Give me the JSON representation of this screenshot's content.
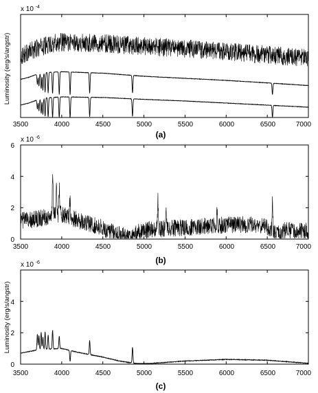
{
  "chart_data": [
    {
      "type": "line",
      "panel_label": "(a)",
      "ylabel": "Luminosity (erg/s/angstr)",
      "y_exponent": "x 10",
      "y_exponent_power": "-4",
      "xlim": [
        3500,
        7000
      ],
      "x_ticks": [
        3500,
        4000,
        4500,
        5000,
        5500,
        6000,
        6500,
        7000
      ],
      "y_ticks": [],
      "grid": false,
      "series": [
        {
          "noise": 0.9,
          "points": [
            [
              3500,
              3.0
            ],
            [
              3700,
              3.35
            ],
            [
              3900,
              3.6
            ],
            [
              4000,
              3.65
            ],
            [
              4500,
              3.6
            ],
            [
              5000,
              3.45
            ],
            [
              5500,
              3.35
            ],
            [
              6000,
              3.2
            ],
            [
              6500,
              3.05
            ],
            [
              7000,
              2.9
            ]
          ],
          "lines": []
        },
        {
          "noise": 0.02,
          "points": [
            [
              3500,
              1.85
            ],
            [
              3600,
              1.95
            ],
            [
              3700,
              2.1
            ],
            [
              3800,
              2.18
            ],
            [
              4000,
              2.22
            ],
            [
              4500,
              2.15
            ],
            [
              5000,
              2.0
            ],
            [
              5500,
              1.9
            ],
            [
              6000,
              1.8
            ],
            [
              6500,
              1.68
            ],
            [
              7000,
              1.55
            ]
          ],
          "lines": [
            [
              3704,
              -0.5
            ],
            [
              3723,
              -0.6
            ],
            [
              3750,
              -0.75
            ],
            [
              3771,
              -0.85
            ],
            [
              3798,
              -0.95
            ],
            [
              3835,
              -1.0
            ],
            [
              3889,
              -1.05
            ],
            [
              3970,
              -1.1
            ],
            [
              4102,
              -1.1
            ],
            [
              4340,
              -1.0
            ],
            [
              4861,
              -0.85
            ],
            [
              6563,
              -0.55
            ]
          ]
        },
        {
          "noise": 0.02,
          "points": [
            [
              3500,
              0.6
            ],
            [
              3600,
              0.7
            ],
            [
              3700,
              0.85
            ],
            [
              3800,
              0.95
            ],
            [
              4000,
              1.0
            ],
            [
              4500,
              0.97
            ],
            [
              5000,
              0.88
            ],
            [
              5500,
              0.8
            ],
            [
              6000,
              0.7
            ],
            [
              6500,
              0.6
            ],
            [
              7000,
              0.5
            ]
          ],
          "lines": [
            [
              3704,
              -0.45
            ],
            [
              3723,
              -0.55
            ],
            [
              3750,
              -0.7
            ],
            [
              3771,
              -0.8
            ],
            [
              3798,
              -0.9
            ],
            [
              3835,
              -0.95
            ],
            [
              3889,
              -1.0
            ],
            [
              3970,
              -1.05
            ],
            [
              4102,
              -1.05
            ],
            [
              4340,
              -0.95
            ],
            [
              4861,
              -0.85
            ],
            [
              6563,
              -0.6
            ]
          ]
        }
      ]
    },
    {
      "type": "line",
      "panel_label": "(b)",
      "ylabel": "Luminosity (erg/s/angstr)",
      "y_exponent": "x 10",
      "y_exponent_power": "-6",
      "xlim": [
        3500,
        7000
      ],
      "ylim": [
        0,
        6
      ],
      "x_ticks": [
        3500,
        4000,
        4500,
        5000,
        5500,
        6000,
        6500,
        7000
      ],
      "y_ticks": [
        0,
        2,
        4,
        6
      ],
      "grid": false,
      "series": [
        {
          "noise": 1.1,
          "points": [
            [
              3500,
              1.2
            ],
            [
              3700,
              1.3
            ],
            [
              3900,
              1.5
            ],
            [
              4000,
              1.6
            ],
            [
              4200,
              1.2
            ],
            [
              4500,
              0.7
            ],
            [
              4700,
              0.3
            ],
            [
              4850,
              0.1
            ],
            [
              4950,
              0.5
            ],
            [
              5100,
              0.6
            ],
            [
              5500,
              0.75
            ],
            [
              6000,
              0.9
            ],
            [
              6300,
              0.95
            ],
            [
              6500,
              0.75
            ],
            [
              6600,
              0.3
            ],
            [
              6700,
              0.55
            ],
            [
              7000,
              0.5
            ]
          ],
          "lines": [
            [
              3890,
              2.5
            ],
            [
              3935,
              2.4
            ],
            [
              3970,
              1.8
            ],
            [
              4100,
              1.2
            ],
            [
              5170,
              1.8
            ],
            [
              5270,
              1.4
            ],
            [
              5890,
              0.8
            ],
            [
              6563,
              2.0
            ]
          ]
        }
      ]
    },
    {
      "type": "line",
      "panel_label": "(c)",
      "ylabel": "Luminosity (erg/s/angstr)",
      "y_exponent": "x 10",
      "y_exponent_power": "-6",
      "xlim": [
        3500,
        7000
      ],
      "ylim": [
        0,
        6
      ],
      "x_ticks": [
        3500,
        4000,
        4500,
        5000,
        5500,
        6000,
        6500,
        7000
      ],
      "y_ticks": [
        0,
        2,
        4
      ],
      "grid": false,
      "series": [
        {
          "noise": 0.04,
          "points": [
            [
              3500,
              0.7
            ],
            [
              3600,
              0.8
            ],
            [
              3700,
              0.9
            ],
            [
              3800,
              0.95
            ],
            [
              4000,
              1.0
            ],
            [
              4200,
              0.75
            ],
            [
              4500,
              0.45
            ],
            [
              4700,
              0.2
            ],
            [
              4850,
              0.08
            ],
            [
              4950,
              0.02
            ],
            [
              5100,
              0.05
            ],
            [
              5500,
              0.2
            ],
            [
              6000,
              0.3
            ],
            [
              6500,
              0.25
            ],
            [
              7000,
              0.05
            ]
          ],
          "lines": [
            [
              3704,
              1.0
            ],
            [
              3723,
              0.9
            ],
            [
              3750,
              1.1
            ],
            [
              3771,
              0.8
            ],
            [
              3798,
              1.1
            ],
            [
              3835,
              0.9
            ],
            [
              3889,
              1.2
            ],
            [
              3970,
              0.8
            ],
            [
              4102,
              -0.7
            ],
            [
              4340,
              0.9
            ],
            [
              4861,
              1.0
            ]
          ]
        }
      ]
    }
  ]
}
